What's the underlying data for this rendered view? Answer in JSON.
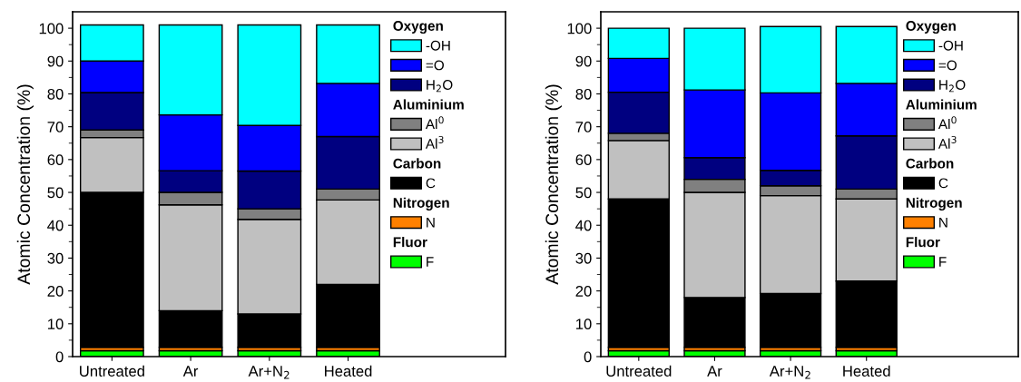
{
  "chart_data": [
    {
      "type": "bar",
      "stacked": true,
      "categories": [
        "Untreated",
        "Ar",
        "Ar+N$_{2}$",
        "Heated"
      ],
      "ylabel": "Atomic Concentration (%)",
      "ylim": [
        0,
        105
      ],
      "yticks": [
        0,
        10,
        20,
        30,
        40,
        50,
        60,
        70,
        80,
        90,
        100
      ],
      "legend": "right",
      "annotations": [
        "Oxygen",
        "Aluminium",
        "Carbon",
        "Nitrogen",
        "Fluor"
      ],
      "series": [
        {
          "name": "F",
          "color": "#00ff00",
          "values": [
            1.8,
            1.8,
            1.8,
            1.8
          ]
        },
        {
          "name": "N",
          "color": "#ff8000",
          "values": [
            1.0,
            1.0,
            1.0,
            1.0
          ]
        },
        {
          "name": "C",
          "color": "#000000",
          "values": [
            47.2,
            11.2,
            10.2,
            19.2
          ]
        },
        {
          "name": "Al$^{3}$",
          "color": "#c0c0c0",
          "values": [
            16.7,
            32.2,
            28.8,
            25.7
          ]
        },
        {
          "name": "Al$^{0}$",
          "color": "#808080",
          "values": [
            2.3,
            3.8,
            3.2,
            3.3
          ]
        },
        {
          "name": "H$_{2}$O",
          "color": "#000080",
          "values": [
            11.4,
            6.6,
            11.5,
            16.0
          ]
        },
        {
          "name": "=O",
          "color": "#0000ff",
          "values": [
            9.6,
            17.0,
            13.9,
            16.2
          ]
        },
        {
          "name": "-OH",
          "color": "#00ffff",
          "values": [
            11.0,
            27.4,
            30.6,
            17.8
          ]
        }
      ]
    },
    {
      "type": "bar",
      "stacked": true,
      "categories": [
        "Untreated",
        "Ar",
        "Ar+N$_{2}$",
        "Heated"
      ],
      "ylabel": "Atomic Concentration (%)",
      "ylim": [
        0,
        105
      ],
      "yticks": [
        0,
        10,
        20,
        30,
        40,
        50,
        60,
        70,
        80,
        90,
        100
      ],
      "legend": "right",
      "annotations": [
        "Oxygen",
        "Aluminium",
        "Carbon",
        "Nitrogen",
        "Fluor"
      ],
      "series": [
        {
          "name": "F",
          "color": "#00ff00",
          "values": [
            1.8,
            1.8,
            1.8,
            1.8
          ]
        },
        {
          "name": "N",
          "color": "#ff8000",
          "values": [
            1.0,
            1.0,
            1.0,
            1.0
          ]
        },
        {
          "name": "C",
          "color": "#000000",
          "values": [
            45.2,
            15.2,
            16.4,
            20.2
          ]
        },
        {
          "name": "Al$^{3}$",
          "color": "#c0c0c0",
          "values": [
            17.8,
            32.0,
            29.8,
            25.0
          ]
        },
        {
          "name": "Al$^{0}$",
          "color": "#808080",
          "values": [
            2.2,
            4.0,
            3.0,
            3.0
          ]
        },
        {
          "name": "H$_{2}$O",
          "color": "#000080",
          "values": [
            12.5,
            6.6,
            4.7,
            16.2
          ]
        },
        {
          "name": "=O",
          "color": "#0000ff",
          "values": [
            10.3,
            20.6,
            23.6,
            16.0
          ]
        },
        {
          "name": "-OH",
          "color": "#00ffff",
          "values": [
            9.2,
            18.8,
            20.2,
            17.3
          ]
        }
      ]
    }
  ]
}
